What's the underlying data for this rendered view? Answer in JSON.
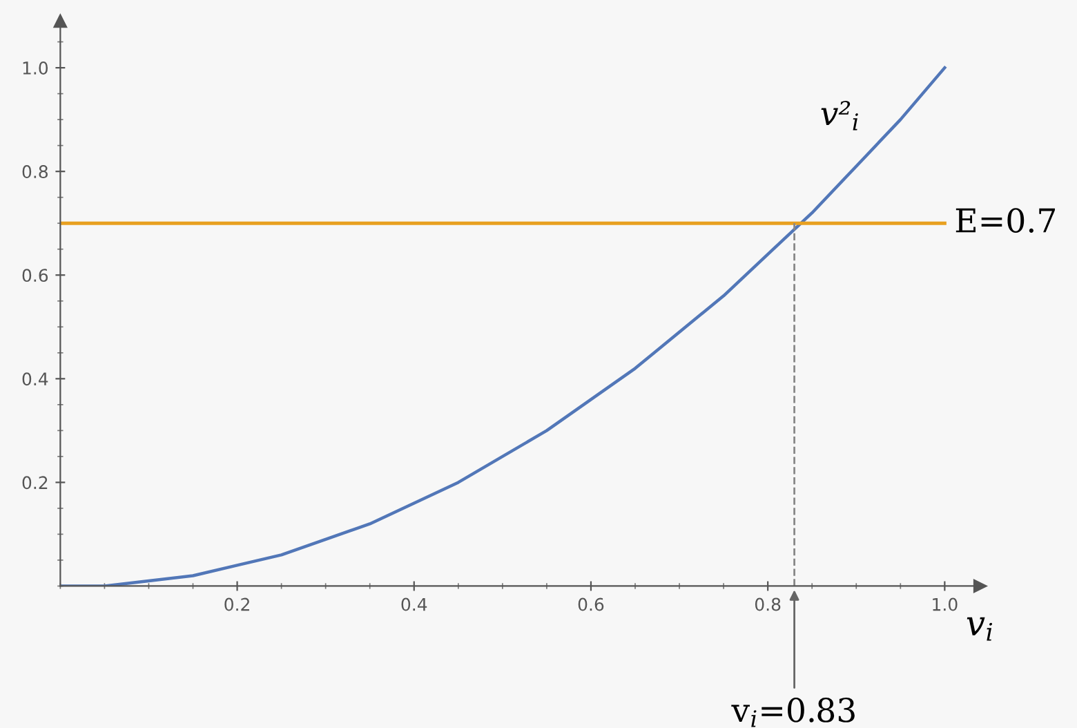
{
  "chart_data": {
    "type": "line",
    "x": [
      0,
      0.05,
      0.1,
      0.15,
      0.2,
      0.25,
      0.3,
      0.35,
      0.4,
      0.45,
      0.5,
      0.55,
      0.6,
      0.65,
      0.7,
      0.75,
      0.8,
      0.85,
      0.9,
      0.95,
      1.0
    ],
    "series": [
      {
        "name": "v²$_{i}$",
        "color": "#5277b8",
        "values": [
          0,
          0.0,
          0.01,
          0.02,
          0.04,
          0.06,
          0.09,
          0.12,
          0.16,
          0.2,
          0.25,
          0.3,
          0.36,
          0.42,
          0.49,
          0.56,
          0.64,
          0.72,
          0.81,
          0.9,
          1.0
        ]
      }
    ],
    "xlabel": "v$_{i}$",
    "xlim": [
      0,
      1.04
    ],
    "ylim": [
      0,
      1.09
    ],
    "xticks": [
      0.2,
      0.4,
      0.6,
      0.8,
      {
        "value": 1,
        "label": "1.0"
      }
    ],
    "yticks": [
      0.2,
      0.4,
      0.6,
      0.8,
      {
        "value": 1,
        "label": "1.0"
      }
    ],
    "ref_lines": [
      {
        "axis": "y",
        "value": 0.7,
        "label": "E=0.7",
        "color": "#e8a020",
        "line_style": "solid"
      },
      {
        "axis": "x",
        "value": 0.83,
        "label": "v$_{i}$=0.83",
        "color": "#888888",
        "line_style": "dashed"
      }
    ],
    "grid": false,
    "legend": false,
    "marker": "none",
    "line_style": "solid"
  }
}
